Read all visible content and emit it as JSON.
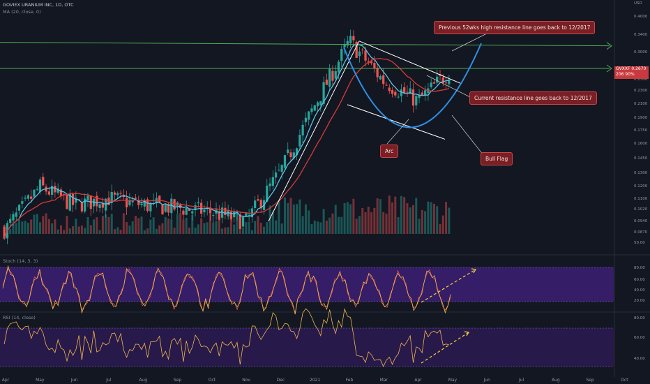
{
  "header": {
    "symbol_line": "GOVIEX URANIUM INC, 1D, OTC",
    "ma_line": "MA (20, close, 0)",
    "stoch_line": "Stoch (14, 3, 3)",
    "rsi_line": "RSI (14, close)"
  },
  "annotations": {
    "previous_resistance": "Previous 52wks high resistance line goes back to 12/2017",
    "current_resistance": "Current resistance line goes back to 12/2017",
    "arc": "Arc",
    "bull_flag": "Bull Flag"
  },
  "price_tag": {
    "symbol": "GVXXF",
    "price": "0.2670",
    "extra": "206 90%"
  },
  "colors": {
    "background": "#131722",
    "up": "#26a69a",
    "down": "#ef5350",
    "ma": "#5dc4e6",
    "slow_ma": "#d93a3a",
    "resistance": "#4caf50",
    "arc": "#2f8fe6",
    "stoch_band": "#3c1f73",
    "rsi_band": "#2d1a52",
    "callout": "#7a1f24"
  },
  "chart_data": [
    {
      "type": "candlestick",
      "title": "GOVIEX URANIUM INC, 1D, OTC",
      "xlabel": "",
      "ylabel": "",
      "x_ticks": [
        "Apr",
        "May",
        "Jun",
        "Jul",
        "Aug",
        "Sep",
        "Oct",
        "Nov",
        "Dec",
        "2021",
        "Feb",
        "Mar",
        "Apr",
        "May",
        "Jun",
        "Jul",
        "Aug",
        "Sep",
        "Oct"
      ],
      "y_ticks": [
        "USD",
        "0.4000",
        "0.3400",
        "0.3000",
        "0.2500",
        "0.2300",
        "0.2100",
        "0.1900",
        "0.1750",
        "0.1600",
        "0.1450",
        "0.1300",
        "0.1200",
        "0.1100",
        "0.1020",
        "0.0940",
        "0.0870",
        "50.00"
      ],
      "scale": "log",
      "ylim": [
        0.084,
        0.42
      ],
      "key_points": [
        {
          "x": "Apr",
          "y": 0.092
        },
        {
          "x": "May",
          "y": 0.122
        },
        {
          "x": "Jun",
          "y": 0.108
        },
        {
          "x": "Jul",
          "y": 0.113
        },
        {
          "x": "Aug",
          "y": 0.108
        },
        {
          "x": "Sep",
          "y": 0.106
        },
        {
          "x": "Oct",
          "y": 0.103
        },
        {
          "x": "Nov",
          "y": 0.097
        },
        {
          "x": "Dec",
          "y": 0.135
        },
        {
          "x": "2021",
          "y": 0.21
        },
        {
          "x": "Feb",
          "y": 0.32
        },
        {
          "x": "Mar",
          "y": 0.245
        },
        {
          "x": "Apr",
          "y": 0.215
        },
        {
          "x": "May",
          "y": 0.267
        }
      ],
      "resistance_levels": [
        0.31,
        0.267
      ],
      "last_price": 0.267,
      "grid": false
    },
    {
      "type": "line",
      "title": "Stoch (14, 3, 3)",
      "y_ticks": [
        "80.00",
        "60.00",
        "40.00",
        "20.00"
      ],
      "ylim": [
        0,
        100
      ],
      "band": [
        20,
        80
      ]
    },
    {
      "type": "line",
      "title": "RSI (14, close)",
      "y_ticks": [
        "80.00",
        "60.00",
        "40.00"
      ],
      "ylim": [
        25,
        85
      ],
      "band": [
        30,
        70
      ]
    }
  ]
}
